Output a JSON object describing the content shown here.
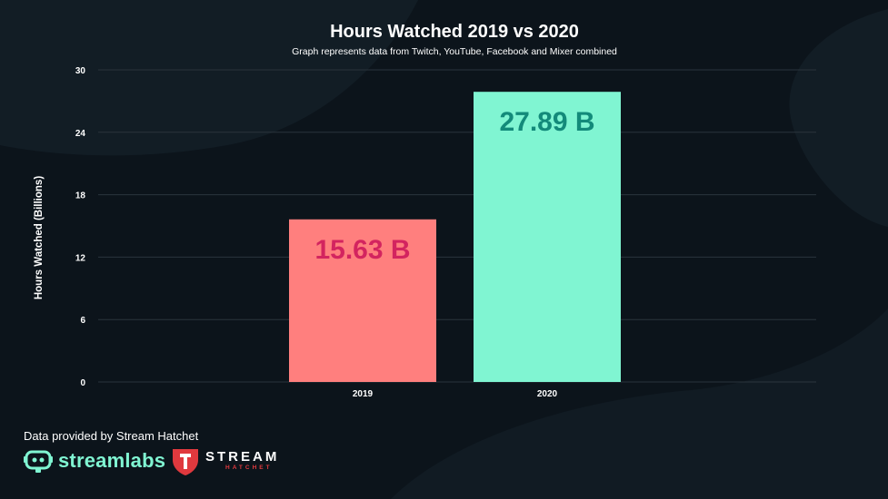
{
  "chart_data": {
    "type": "bar",
    "title": "Hours Watched 2019 vs 2020",
    "subtitle": "Graph represents data from Twitch, YouTube, Facebook and Mixer combined",
    "ylabel": "Hours Watched (Billions)",
    "xlabel": "",
    "categories": [
      "2019",
      "2020"
    ],
    "values": [
      15.63,
      27.89
    ],
    "data_labels": [
      "15.63 B",
      "27.89 B"
    ],
    "ylim": [
      0,
      30
    ],
    "yticks": [
      0,
      6,
      12,
      18,
      24,
      30
    ],
    "ytick_labels": [
      "0",
      "6",
      "12",
      "18",
      "24",
      "30"
    ],
    "grid": true,
    "legend": "none",
    "colors": {
      "bars": [
        "#ff7f7e",
        "#80f5d2"
      ],
      "labels": [
        "#d3245f",
        "#138a7a"
      ],
      "grid": "#2a343c",
      "background": "#0c141b"
    }
  },
  "footer": {
    "credit": "Data provided by Stream Hatchet",
    "logo_streamlabs": "streamlabs",
    "logo_hatchet_top": "STREAM",
    "logo_hatchet_bottom": "HATCHET"
  }
}
